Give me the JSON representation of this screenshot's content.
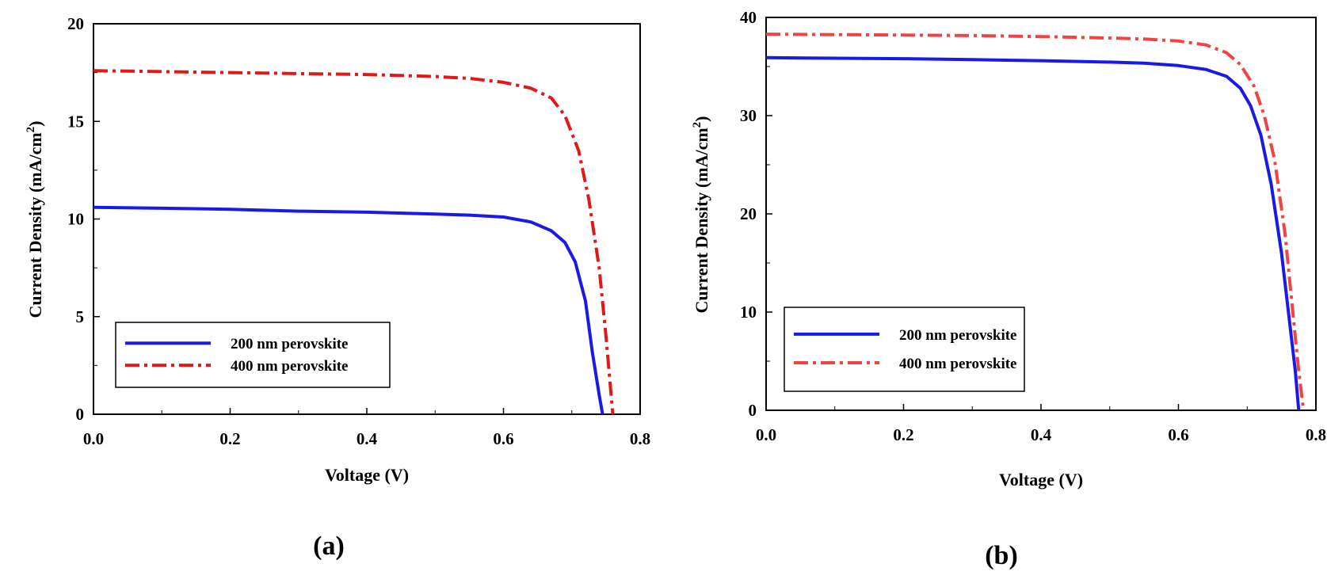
{
  "chart_data": [
    {
      "type": "line",
      "panel_label": "(a)",
      "title": "",
      "xlabel": "Voltage (V)",
      "ylabel_main": "Current Density (mA/cm",
      "ylabel_sup": "2",
      "ylabel_close": ")",
      "xlim": [
        0,
        0.8
      ],
      "ylim": [
        0,
        20
      ],
      "xticks": [
        "0.0",
        "0.2",
        "0.4",
        "0.6",
        "0.8"
      ],
      "yticks": [
        "0",
        "5",
        "10",
        "15",
        "20"
      ],
      "grid": false,
      "legend_position": "bottom-left",
      "series": [
        {
          "name": "200 nm perovskite",
          "color": "#1a1ae6",
          "style": "solid",
          "x": [
            0,
            0.1,
            0.2,
            0.3,
            0.4,
            0.5,
            0.55,
            0.6,
            0.64,
            0.67,
            0.69,
            0.705,
            0.72,
            0.73,
            0.74,
            0.745
          ],
          "y": [
            10.6,
            10.55,
            10.5,
            10.4,
            10.35,
            10.25,
            10.2,
            10.1,
            9.85,
            9.4,
            8.8,
            7.8,
            5.8,
            3.2,
            1.0,
            0
          ]
        },
        {
          "name": "400 nm perovskite",
          "color": "#e01818",
          "style": "dashdot",
          "x": [
            0,
            0.1,
            0.2,
            0.3,
            0.4,
            0.5,
            0.55,
            0.6,
            0.64,
            0.67,
            0.69,
            0.71,
            0.725,
            0.74,
            0.75,
            0.755,
            0.76
          ],
          "y": [
            17.6,
            17.55,
            17.5,
            17.45,
            17.4,
            17.3,
            17.2,
            17.0,
            16.7,
            16.2,
            15.3,
            13.5,
            11.0,
            7.5,
            4.0,
            2.0,
            0
          ]
        }
      ]
    },
    {
      "type": "line",
      "panel_label": "(b)",
      "title": "",
      "xlabel": "Voltage (V)",
      "ylabel_main": "Current Density (mA/cm",
      "ylabel_sup": "2",
      "ylabel_close": ")",
      "xlim": [
        0,
        0.8
      ],
      "ylim": [
        0,
        40
      ],
      "xticks": [
        "0.0",
        "0.2",
        "0.4",
        "0.6",
        "0.8"
      ],
      "yticks": [
        "0",
        "10",
        "20",
        "30",
        "40"
      ],
      "grid": false,
      "legend_position": "bottom-left",
      "series": [
        {
          "name": "200 nm perovskite",
          "color": "#1a1ae6",
          "style": "solid",
          "x": [
            0,
            0.1,
            0.2,
            0.3,
            0.4,
            0.5,
            0.55,
            0.6,
            0.64,
            0.67,
            0.69,
            0.705,
            0.72,
            0.735,
            0.75,
            0.76,
            0.77,
            0.775
          ],
          "y": [
            35.9,
            35.85,
            35.8,
            35.7,
            35.6,
            35.45,
            35.35,
            35.1,
            34.7,
            34.0,
            32.8,
            31.0,
            28.0,
            23.0,
            16.0,
            10.0,
            4.0,
            0
          ]
        },
        {
          "name": "400 nm perovskite",
          "color": "#ee4444",
          "style": "dashdot",
          "x": [
            0,
            0.1,
            0.2,
            0.3,
            0.4,
            0.5,
            0.55,
            0.6,
            0.64,
            0.67,
            0.69,
            0.71,
            0.725,
            0.74,
            0.755,
            0.765,
            0.775,
            0.782
          ],
          "y": [
            38.3,
            38.25,
            38.2,
            38.15,
            38.05,
            37.9,
            37.8,
            37.6,
            37.2,
            36.4,
            35.2,
            33.0,
            30.0,
            25.5,
            18.0,
            11.0,
            4.0,
            0
          ]
        }
      ]
    }
  ]
}
